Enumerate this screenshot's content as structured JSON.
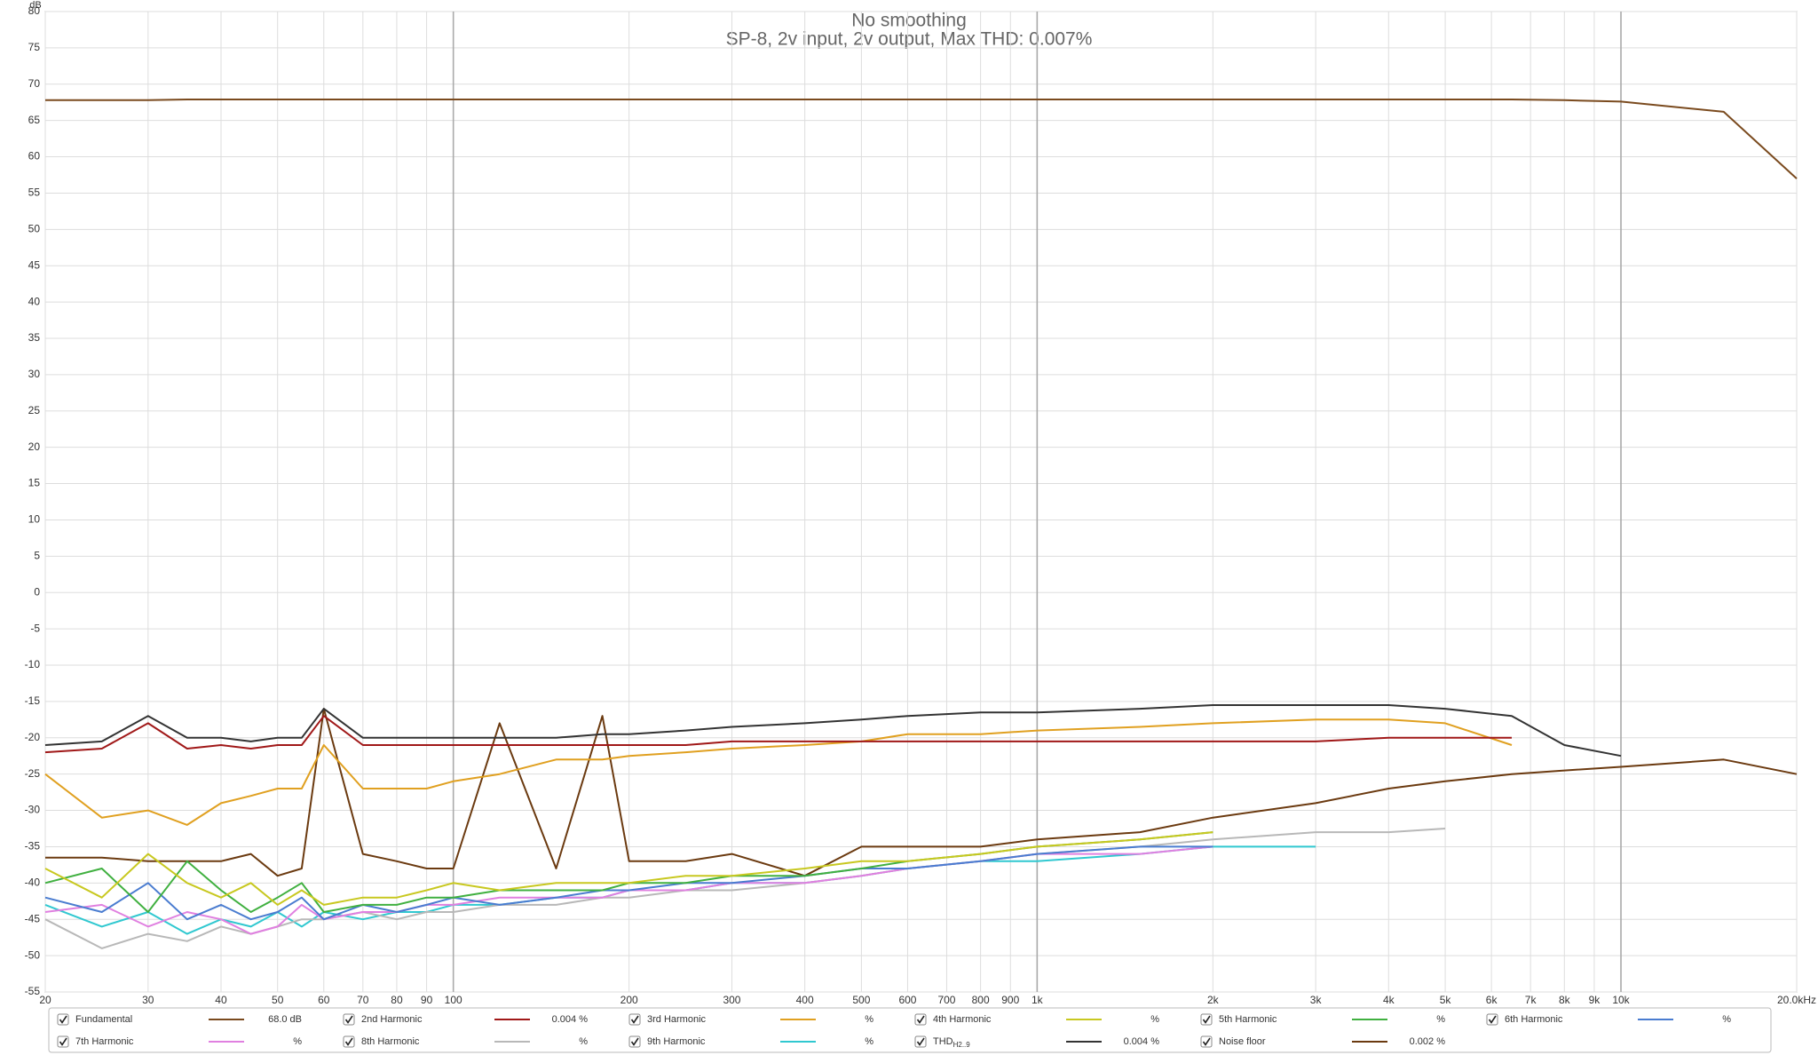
{
  "chart_data": {
    "type": "line",
    "title": "No smoothing",
    "subtitle": "SP-8, 2v input, 2v output, Max THD: 0.007%",
    "y_label": "dB",
    "log_x": true,
    "grid": true,
    "legend": "bottom",
    "xlim": [
      20,
      20000
    ],
    "ylim": [
      -55,
      80
    ],
    "xticks": [
      20,
      30,
      40,
      50,
      60,
      70,
      80,
      90,
      100,
      200,
      300,
      400,
      500,
      600,
      700,
      800,
      900,
      {
        "value": 1000,
        "label": "1k"
      },
      {
        "value": 2000,
        "label": "2k"
      },
      {
        "value": 3000,
        "label": "3k"
      },
      {
        "value": 4000,
        "label": "4k"
      },
      {
        "value": 5000,
        "label": "5k"
      },
      {
        "value": 6000,
        "label": "6k"
      },
      {
        "value": 7000,
        "label": "7k"
      },
      {
        "value": 8000,
        "label": "8k"
      },
      {
        "value": 9000,
        "label": "9k"
      },
      {
        "value": 10000,
        "label": "10k"
      },
      {
        "value": 20000,
        "label": "20.0kHz"
      }
    ],
    "yticks": [
      -55,
      -50,
      -45,
      -40,
      -35,
      -30,
      -25,
      -20,
      -15,
      -10,
      -5,
      0,
      5,
      10,
      15,
      20,
      25,
      30,
      35,
      40,
      45,
      50,
      55,
      60,
      65,
      70,
      75,
      80
    ],
    "x": [
      20,
      25,
      30,
      35,
      40,
      45,
      50,
      55,
      60,
      70,
      80,
      90,
      100,
      120,
      150,
      180,
      200,
      250,
      300,
      400,
      500,
      600,
      800,
      1000,
      1500,
      2000,
      3000,
      4000,
      5000,
      6500,
      8000,
      10000,
      15000,
      20000
    ],
    "series": [
      {
        "name": "Fundamental",
        "color": "#7a4a1e",
        "legend_value": "68.0 dB",
        "values": [
          67.8,
          67.8,
          67.8,
          67.9,
          67.9,
          67.9,
          67.9,
          67.9,
          67.9,
          67.9,
          67.9,
          67.9,
          67.9,
          67.9,
          67.9,
          67.9,
          67.9,
          67.9,
          67.9,
          67.9,
          67.9,
          67.9,
          67.9,
          67.9,
          67.9,
          67.9,
          67.9,
          67.9,
          67.9,
          67.9,
          67.8,
          67.6,
          66.2,
          57
        ]
      },
      {
        "name": "2nd Harmonic",
        "color": "#a01818",
        "legend_value": "0.004 %",
        "values": [
          -22,
          -21.5,
          -18,
          -21.5,
          -21,
          -21.5,
          -21,
          -21,
          -17,
          -21,
          -21,
          -21,
          -21,
          -21,
          -21,
          -21,
          -21,
          -21,
          -20.5,
          -20.5,
          -20.5,
          -20.5,
          -20.5,
          -20.5,
          -20.5,
          -20.5,
          -20.5,
          -20,
          -20,
          -20,
          null,
          null,
          null,
          null
        ]
      },
      {
        "name": "3rd Harmonic",
        "color": "#e0a020",
        "legend_value": "%",
        "values": [
          -25,
          -31,
          -30,
          -32,
          -29,
          -28,
          -27,
          -27,
          -21,
          -27,
          -27,
          -27,
          -26,
          -25,
          -23,
          -23,
          -22.5,
          -22,
          -21.5,
          -21,
          -20.5,
          -19.5,
          -19.5,
          -19,
          -18.5,
          -18,
          -17.5,
          -17.5,
          -18,
          -21,
          null,
          null,
          null,
          null
        ]
      },
      {
        "name": "4th Harmonic",
        "color": "#c8c820",
        "legend_value": "%",
        "values": [
          -38,
          -42,
          -36,
          -40,
          -42,
          -40,
          -43,
          -41,
          -43,
          -42,
          -42,
          -41,
          -40,
          -41,
          -40,
          -40,
          -40,
          -39,
          -39,
          -38,
          -37,
          -37,
          -36,
          -35,
          -34,
          -33,
          null,
          null,
          null,
          null,
          null,
          null,
          null,
          null
        ]
      },
      {
        "name": "5th Harmonic",
        "color": "#40b040",
        "legend_value": "%",
        "values": [
          -40,
          -38,
          -44,
          -37,
          -41,
          -44,
          -42,
          -40,
          -44,
          -43,
          -43,
          -42,
          -42,
          -41,
          -41,
          -41,
          -40,
          -40,
          -39,
          -39,
          -38,
          -37,
          -36,
          -35,
          -34,
          -33,
          null,
          null,
          null,
          null,
          null,
          null,
          null,
          null
        ]
      },
      {
        "name": "6th Harmonic",
        "color": "#4a7cd0",
        "legend_value": "%",
        "values": [
          -42,
          -44,
          -40,
          -45,
          -43,
          -45,
          -44,
          -42,
          -45,
          -43,
          -44,
          -43,
          -42,
          -43,
          -42,
          -41,
          -41,
          -40,
          -40,
          -39,
          -38,
          -38,
          -37,
          -36,
          -35,
          -35,
          null,
          null,
          null,
          null,
          null,
          null,
          null,
          null
        ]
      },
      {
        "name": "7th Harmonic",
        "color": "#e080e0",
        "legend_value": "%",
        "values": [
          -44,
          -43,
          -46,
          -44,
          -45,
          -47,
          -46,
          -43,
          -45,
          -44,
          -44,
          -43,
          -43,
          -42,
          -42,
          -42,
          -41,
          -41,
          -40,
          -40,
          -39,
          -38,
          -37,
          -36,
          -36,
          -35,
          null,
          null,
          null,
          null,
          null,
          null,
          null,
          null
        ]
      },
      {
        "name": "8th Harmonic",
        "color": "#b8b8b8",
        "legend_value": "%",
        "values": [
          -45,
          -49,
          -47,
          -48,
          -46,
          -47,
          -46,
          -45,
          -45,
          -44,
          -45,
          -44,
          -44,
          -43,
          -43,
          -42,
          -42,
          -41,
          -41,
          -40,
          -39,
          -38,
          -37,
          -36,
          -35,
          -34,
          -33,
          -33,
          -32.5,
          null,
          null,
          null,
          null,
          null
        ]
      },
      {
        "name": "9th Harmonic",
        "color": "#30c8d0",
        "legend_value": "%",
        "values": [
          -43,
          -46,
          -44,
          -47,
          -45,
          -46,
          -44,
          -46,
          -44,
          -45,
          -44,
          -44,
          -43,
          -43,
          -42,
          -42,
          -41,
          -41,
          -40,
          -40,
          -39,
          -38,
          -37,
          -37,
          -36,
          -35,
          -35,
          null,
          null,
          null,
          null,
          null,
          null,
          null
        ]
      },
      {
        "name": "THD",
        "subscript": "H2..9",
        "color": "#333333",
        "legend_value": "0.004 %",
        "values": [
          -21,
          -20.5,
          -17,
          -20,
          -20,
          -20.5,
          -20,
          -20,
          -16,
          -20,
          -20,
          -20,
          -20,
          -20,
          -20,
          -19.5,
          -19.5,
          -19,
          -18.5,
          -18,
          -17.5,
          -17,
          -16.5,
          -16.5,
          -16,
          -15.5,
          -15.5,
          -15.5,
          -16,
          -17,
          -21,
          -22.5,
          null,
          null
        ]
      },
      {
        "name": "Noise floor",
        "color": "#6b3a10",
        "legend_value": "0.002 %",
        "values": [
          -36.5,
          -36.5,
          -37,
          -37,
          -37,
          -36,
          -39,
          -38,
          -16,
          -36,
          -37,
          -38,
          -38,
          -18,
          -38,
          -17,
          -37,
          -37,
          -36,
          -39,
          -35,
          -35,
          -35,
          -34,
          -33,
          -31,
          -29,
          -27,
          -26,
          -25,
          -24.5,
          -24,
          -23,
          -25
        ]
      }
    ]
  }
}
